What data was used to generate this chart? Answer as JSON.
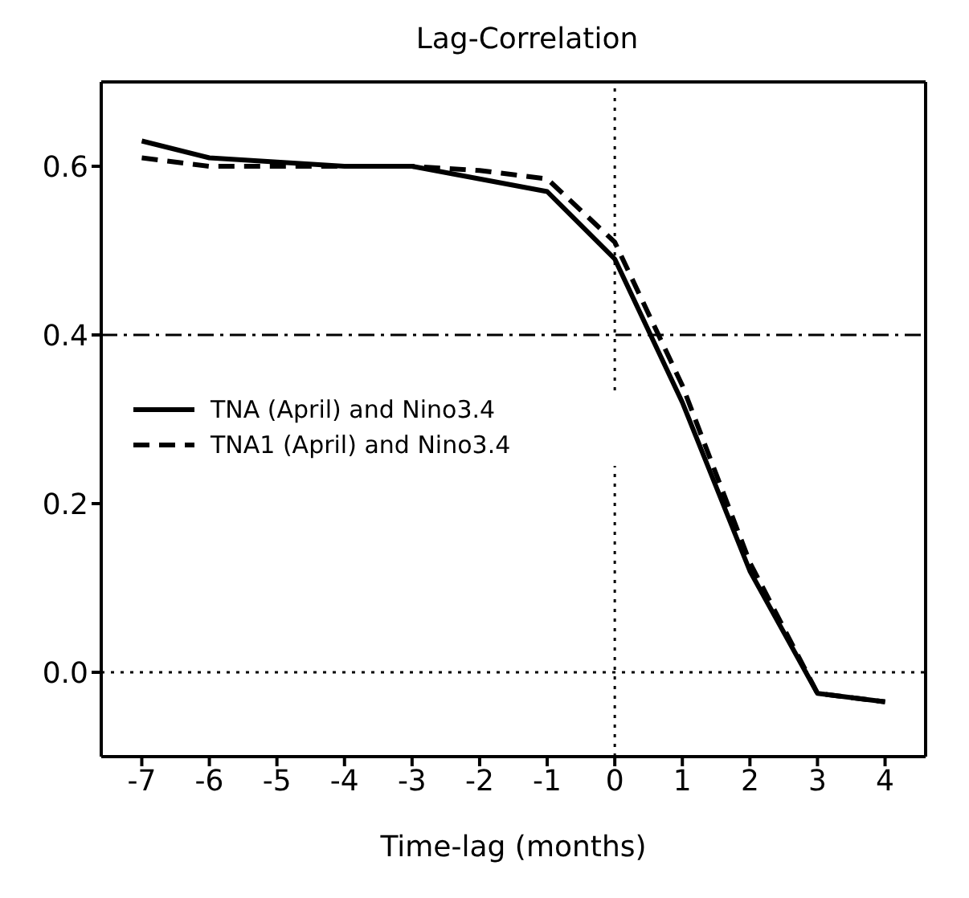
{
  "chart_data": {
    "type": "line",
    "title": "Lag-Correlation",
    "xlabel": "Time-lag (months)",
    "x": [
      -7,
      -6,
      -5,
      -4,
      -3,
      -2,
      -1,
      0,
      1,
      2,
      3,
      4
    ],
    "series": [
      {
        "name": "TNA (April) and Nino3.4",
        "color": "#000000",
        "line_style": "solid",
        "values": [
          0.63,
          0.61,
          0.605,
          0.6,
          0.6,
          0.585,
          0.57,
          0.49,
          0.32,
          0.12,
          -0.025,
          -0.035
        ]
      },
      {
        "name": "TNA1 (April) and Nino3.4",
        "color": "#000000",
        "line_style": "dashed",
        "values": [
          0.61,
          0.6,
          0.6,
          0.6,
          0.6,
          0.595,
          0.585,
          0.51,
          0.34,
          0.13,
          -0.025,
          -0.035
        ]
      }
    ],
    "xlim": [
      -7.6,
      4.6
    ],
    "xticks": [
      -7,
      -6,
      -5,
      -4,
      -3,
      -2,
      -1,
      0,
      1,
      2,
      3,
      4
    ],
    "ylim": [
      -0.1,
      0.7
    ],
    "yticks": [
      {
        "value": 0,
        "label": "0.0"
      },
      {
        "value": 0.2,
        "label": "0.2"
      },
      {
        "value": 0.4,
        "label": "0.4"
      },
      {
        "value": 0.6,
        "label": "0.6"
      }
    ],
    "ref_lines": [
      {
        "axis": "y",
        "value": 0,
        "line_style": "dotted"
      },
      {
        "axis": "y",
        "value": 0.4,
        "line_style": "dashdot"
      },
      {
        "axis": "x",
        "value": 0,
        "line_style": "dotted"
      }
    ],
    "legend": "left",
    "marker": "none"
  }
}
